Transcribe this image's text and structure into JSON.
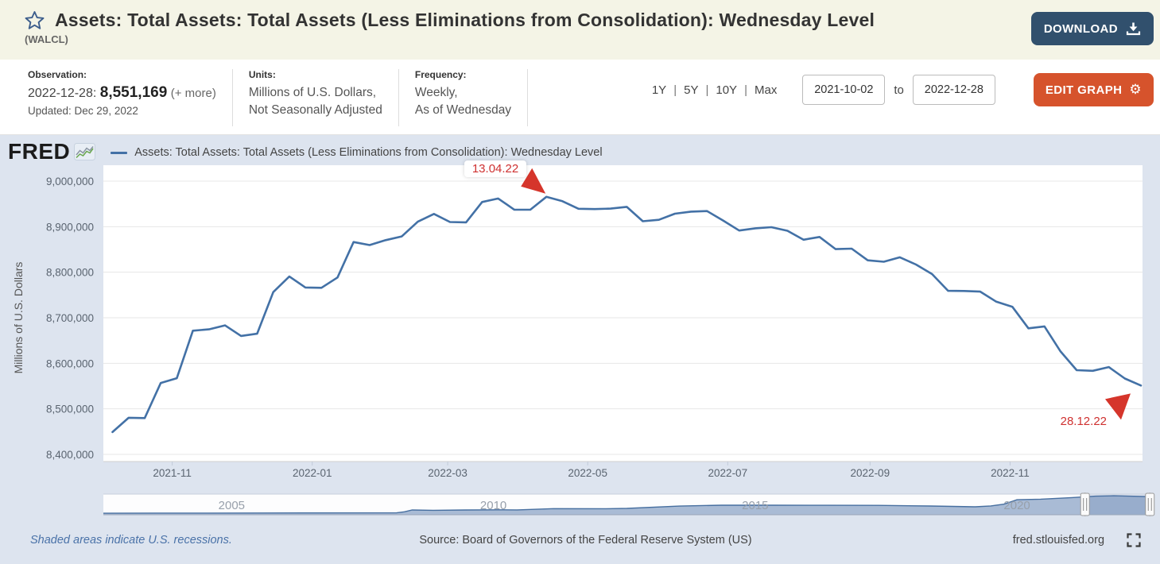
{
  "header": {
    "title": "Assets: Total Assets: Total Assets (Less Eliminations from Consolidation): Wednesday Level",
    "series_id": "(WALCL)",
    "download_label": "DOWNLOAD"
  },
  "info_bar": {
    "observation": {
      "label": "Observation:",
      "date": "2022-12-28:",
      "value": "8,551,169",
      "more": "(+ more)",
      "updated": "Updated: Dec 29, 2022"
    },
    "units": {
      "label": "Units:",
      "line1": "Millions of U.S. Dollars,",
      "line2": "Not Seasonally Adjusted"
    },
    "frequency": {
      "label": "Frequency:",
      "line1": "Weekly,",
      "line2": "As of Wednesday"
    },
    "ranges": [
      "1Y",
      "5Y",
      "10Y",
      "Max"
    ],
    "range_separator": "|",
    "date_from": "2021-10-02",
    "date_to_label": "to",
    "date_to": "2022-12-28",
    "edit_graph_label": "EDIT GRAPH",
    "gear_icon": "⚙"
  },
  "graph": {
    "brand": "FRED",
    "legend_label": "Assets: Total Assets: Total Assets (Less Eliminations from Consolidation): Wednesday Level"
  },
  "chart_data": {
    "type": "line",
    "title": "Assets: Total Assets: Total Assets (Less Eliminations from Consolidation): Wednesday Level",
    "ylabel": "Millions of U.S. Dollars",
    "ylim": [
      8400000,
      9000000
    ],
    "grid": "horizontal",
    "legend_position": "top-left",
    "line_color": "#4371a6",
    "annotation_color": "#d5352b",
    "yticks": [
      {
        "label": "9,000,000",
        "value": 9000000
      },
      {
        "label": "8,900,000",
        "value": 8900000
      },
      {
        "label": "8,800,000",
        "value": 8800000
      },
      {
        "label": "8,700,000",
        "value": 8700000
      },
      {
        "label": "8,600,000",
        "value": 8600000
      },
      {
        "label": "8,500,000",
        "value": 8500000
      },
      {
        "label": "8,400,000",
        "value": 8400000
      }
    ],
    "x_domain": [
      "2021-10-02",
      "2022-12-28"
    ],
    "xticks": [
      {
        "label": "2021-11",
        "date": "2021-11-01"
      },
      {
        "label": "2022-01",
        "date": "2022-01-01"
      },
      {
        "label": "2022-03",
        "date": "2022-03-01"
      },
      {
        "label": "2022-05",
        "date": "2022-05-01"
      },
      {
        "label": "2022-07",
        "date": "2022-07-01"
      },
      {
        "label": "2022-09",
        "date": "2022-09-01"
      },
      {
        "label": "2022-11",
        "date": "2022-11-01"
      }
    ],
    "series": [
      {
        "name": "Assets: Total Assets: Total Assets (Less Eliminations from Consolidation): Wednesday Level",
        "color": "#4371a6",
        "dates": [
          "2021-10-06",
          "2021-10-13",
          "2021-10-20",
          "2021-10-27",
          "2021-11-03",
          "2021-11-10",
          "2021-11-17",
          "2021-11-24",
          "2021-12-01",
          "2021-12-08",
          "2021-12-15",
          "2021-12-22",
          "2021-12-29",
          "2022-01-05",
          "2022-01-12",
          "2022-01-19",
          "2022-01-26",
          "2022-02-02",
          "2022-02-09",
          "2022-02-16",
          "2022-02-23",
          "2022-03-02",
          "2022-03-09",
          "2022-03-16",
          "2022-03-23",
          "2022-03-30",
          "2022-04-06",
          "2022-04-13",
          "2022-04-20",
          "2022-04-27",
          "2022-05-04",
          "2022-05-11",
          "2022-05-18",
          "2022-05-25",
          "2022-06-01",
          "2022-06-08",
          "2022-06-15",
          "2022-06-22",
          "2022-06-29",
          "2022-07-06",
          "2022-07-13",
          "2022-07-20",
          "2022-07-27",
          "2022-08-03",
          "2022-08-10",
          "2022-08-17",
          "2022-08-24",
          "2022-08-31",
          "2022-09-07",
          "2022-09-14",
          "2022-09-21",
          "2022-09-28",
          "2022-10-05",
          "2022-10-12",
          "2022-10-19",
          "2022-10-26",
          "2022-11-02",
          "2022-11-09",
          "2022-11-16",
          "2022-11-23",
          "2022-11-30",
          "2022-12-07",
          "2022-12-14",
          "2022-12-21",
          "2022-12-28"
        ],
        "values": [
          8448980,
          8480394,
          8479727,
          8556748,
          8567274,
          8671491,
          8674615,
          8683286,
          8660133,
          8664880,
          8756340,
          8790506,
          8766470,
          8765756,
          8788458,
          8866157,
          8859648,
          8870389,
          8878628,
          8910953,
          8927968,
          8910100,
          8909399,
          8954079,
          8961834,
          8937445,
          8937241,
          8965487,
          8955917,
          8939219,
          8938677,
          8939720,
          8943531,
          8911906,
          8915124,
          8928575,
          8932971,
          8934316,
          8913460,
          8891565,
          8896435,
          8898864,
          8890971,
          8871276,
          8877329,
          8850625,
          8851805,
          8826035,
          8822899,
          8832756,
          8816863,
          8795979,
          8759083,
          8758816,
          8757460,
          8735149,
          8724028,
          8676733,
          8680939,
          8626075,
          8584927,
          8583544,
          8591731,
          8566508,
          8551169
        ]
      }
    ],
    "annotations": [
      {
        "text": "13.04.22",
        "date": "2022-04-13",
        "direction": "se"
      },
      {
        "text": "28.12.22",
        "date": "2022-12-28",
        "direction": "ne"
      }
    ],
    "minimap": {
      "type": "area",
      "x_domain_years": [
        2003,
        2023
      ],
      "year_labels": [
        2005,
        2010,
        2015,
        2020
      ],
      "selected_range": [
        "2021-10-02",
        "2022-12-28"
      ],
      "points": [
        [
          2003.0,
          720000
        ],
        [
          2004.0,
          770000
        ],
        [
          2005.0,
          800000
        ],
        [
          2006.0,
          830000
        ],
        [
          2007.0,
          860000
        ],
        [
          2008.6,
          900000
        ],
        [
          2008.75,
          1400000
        ],
        [
          2008.9,
          2250000
        ],
        [
          2009.3,
          2100000
        ],
        [
          2009.9,
          2250000
        ],
        [
          2010.5,
          2330000
        ],
        [
          2010.9,
          2300000
        ],
        [
          2011.6,
          2870000
        ],
        [
          2012.6,
          2850000
        ],
        [
          2013.0,
          3000000
        ],
        [
          2014.0,
          4100000
        ],
        [
          2014.8,
          4500000
        ],
        [
          2015.8,
          4490000
        ],
        [
          2016.8,
          4450000
        ],
        [
          2017.8,
          4420000
        ],
        [
          2018.8,
          4140000
        ],
        [
          2019.65,
          3760000
        ],
        [
          2019.95,
          4170000
        ],
        [
          2020.2,
          5000000
        ],
        [
          2020.45,
          7100000
        ],
        [
          2020.9,
          7350000
        ],
        [
          2021.5,
          8100000
        ],
        [
          2021.95,
          8760000
        ],
        [
          2022.3,
          8960000
        ],
        [
          2022.99,
          8551169
        ]
      ]
    }
  },
  "footer": {
    "recession_note": "Shaded areas indicate U.S. recessions.",
    "source": "Source: Board of Governors of the Federal Reserve System (US)",
    "site": "fred.stlouisfed.org"
  }
}
